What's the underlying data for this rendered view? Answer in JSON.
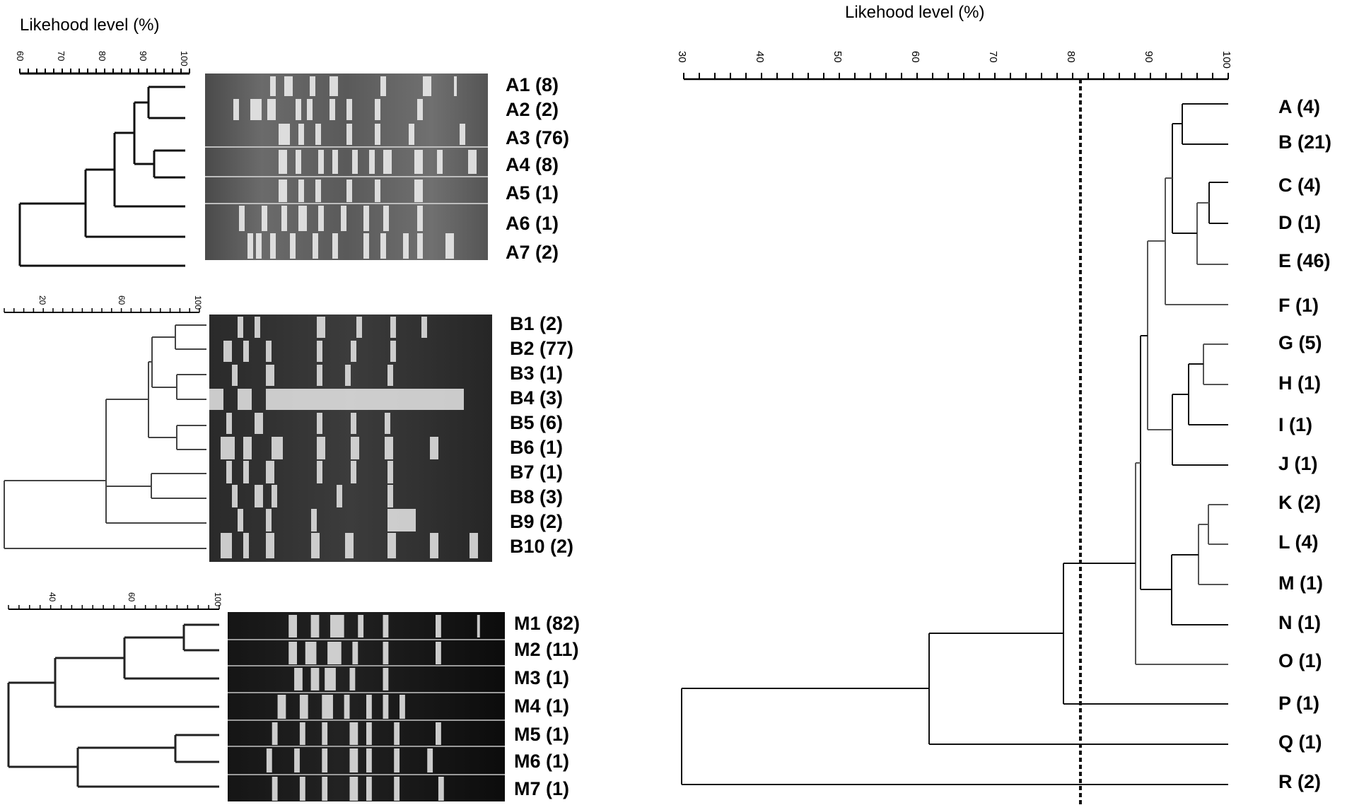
{
  "panel_a": {
    "title": "Likehood level (%)",
    "scale_ticks": [
      "60",
      "70",
      "80",
      "90",
      "100"
    ],
    "labels": [
      "A1 (8)",
      "A2 (2)",
      "A3 (76)",
      "A4 (8)",
      "A5 (1)",
      "A6 (1)",
      "A7 (2)"
    ]
  },
  "panel_b": {
    "scale_ticks": [
      "20",
      "60",
      "100"
    ],
    "labels": [
      "B1 (2)",
      "B2 (77)",
      "B3 (1)",
      "B4 (3)",
      "B5 (6)",
      "B6 (1)",
      "B7 (1)",
      "B8 (3)",
      "B9 (2)",
      "B10 (2)"
    ]
  },
  "panel_m": {
    "scale_ticks": [
      "40",
      "60",
      "100"
    ],
    "labels": [
      "M1 (82)",
      "M2 (11)",
      "M3 (1)",
      "M4 (1)",
      "M5 (1)",
      "M6 (1)",
      "M7 (1)"
    ]
  },
  "panel_main": {
    "title": "Likehood level (%)",
    "scale_ticks": [
      "30",
      "40",
      "50",
      "60",
      "70",
      "80",
      "90",
      "100"
    ],
    "cutoff_percent": 81,
    "labels": [
      "A (4)",
      "B (21)",
      "C (4)",
      "D (1)",
      "E (46)",
      "F (1)",
      "G (5)",
      "H (1)",
      "I (1)",
      "J (1)",
      "K (2)",
      "L (4)",
      "M (1)",
      "N (1)",
      "O (1)",
      "P (1)",
      "Q (1)",
      "R (2)"
    ]
  }
}
